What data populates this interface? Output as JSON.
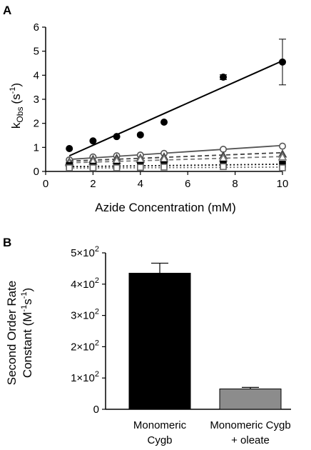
{
  "chart_data": [
    {
      "panel": "A",
      "type": "scatter",
      "xlabel": "Azide Concentration (mM)",
      "ylabel": {
        "base": "k",
        "sub": "Obs",
        "unit": "(s",
        "unit_sup": "-1",
        "unit_close": ")"
      },
      "xlim": [
        0,
        10
      ],
      "ylim": [
        0,
        6
      ],
      "xticks": [
        "0",
        "2",
        "4",
        "6",
        "8",
        "10"
      ],
      "yticks": [
        "0",
        "1",
        "2",
        "3",
        "4",
        "5",
        "6"
      ],
      "series": [
        {
          "marker": "filled-circle",
          "line": "solid",
          "color": "#000000",
          "x": [
            1,
            2,
            3,
            4,
            5,
            7.5,
            10
          ],
          "y": [
            0.95,
            1.27,
            1.45,
            1.52,
            2.05,
            3.92,
            4.55
          ],
          "err": [
            0,
            0,
            0,
            0,
            0,
            0.1,
            0.95
          ],
          "fit": [
            [
              1,
              0.65
            ],
            [
              10,
              4.6
            ]
          ]
        },
        {
          "marker": "open-circle",
          "line": "solid",
          "color": "#555555",
          "x": [
            1,
            2,
            3,
            4,
            5,
            7.5,
            10
          ],
          "y": [
            0.48,
            0.6,
            0.65,
            0.68,
            0.75,
            0.92,
            1.05
          ],
          "fit": [
            [
              1,
              0.5
            ],
            [
              10,
              1.08
            ]
          ]
        },
        {
          "marker": "filled-triangle",
          "line": "dashed",
          "color": "#444444",
          "x": [
            1,
            2,
            3,
            4,
            5,
            7.5,
            10
          ],
          "y": [
            0.4,
            0.5,
            0.55,
            0.55,
            0.6,
            0.65,
            0.72
          ],
          "fit": [
            [
              1,
              0.43
            ],
            [
              10,
              0.78
            ]
          ]
        },
        {
          "marker": "open-triangle",
          "line": "dashed",
          "color": "#777777",
          "x": [
            1,
            2,
            3,
            4,
            5,
            7.5,
            10
          ],
          "y": [
            0.35,
            0.42,
            0.45,
            0.5,
            0.52,
            0.55,
            0.6
          ],
          "fit": [
            [
              1,
              0.36
            ],
            [
              10,
              0.62
            ]
          ]
        },
        {
          "marker": "filled-square",
          "line": "dotted",
          "color": "#000000",
          "x": [
            1,
            2,
            3,
            4,
            5,
            7.5,
            10
          ],
          "y": [
            0.25,
            0.22,
            0.22,
            0.25,
            0.28,
            0.3,
            0.3
          ],
          "fit": [
            [
              1,
              0.2
            ],
            [
              10,
              0.3
            ]
          ]
        },
        {
          "marker": "open-square",
          "line": "dotted",
          "color": "#666666",
          "x": [
            1,
            2,
            3,
            4,
            5,
            7.5,
            10
          ],
          "y": [
            0.15,
            0.15,
            0.15,
            0.17,
            0.18,
            0.2,
            0.15
          ],
          "fit": [
            [
              1,
              0.14
            ],
            [
              10,
              0.18
            ]
          ]
        }
      ]
    },
    {
      "panel": "B",
      "type": "bar",
      "ylabel_line1": "Second Order Rate",
      "ylabel_line2": {
        "text": "Constant (M",
        "sup1": "-1",
        "mid": "s",
        "sup2": "-1",
        "close": ")"
      },
      "ylim": [
        0,
        500
      ],
      "yticks": [
        {
          "value": 0,
          "label": "0"
        },
        {
          "value": 100,
          "mant": "1×10",
          "exp": "2"
        },
        {
          "value": 200,
          "mant": "2×10",
          "exp": "2"
        },
        {
          "value": 300,
          "mant": "3×10",
          "exp": "2"
        },
        {
          "value": 400,
          "mant": "4×10",
          "exp": "2"
        },
        {
          "value": 500,
          "mant": "5×10",
          "exp": "2"
        }
      ],
      "categories": [
        {
          "line1": "Monomeric",
          "line2": "Cygb"
        },
        {
          "line1": "Monomeric Cygb",
          "line2": "+ oleate"
        }
      ],
      "values": [
        435,
        65
      ],
      "errors": [
        32,
        5
      ],
      "colors": [
        "#000000",
        "#8c8c8c"
      ]
    }
  ]
}
